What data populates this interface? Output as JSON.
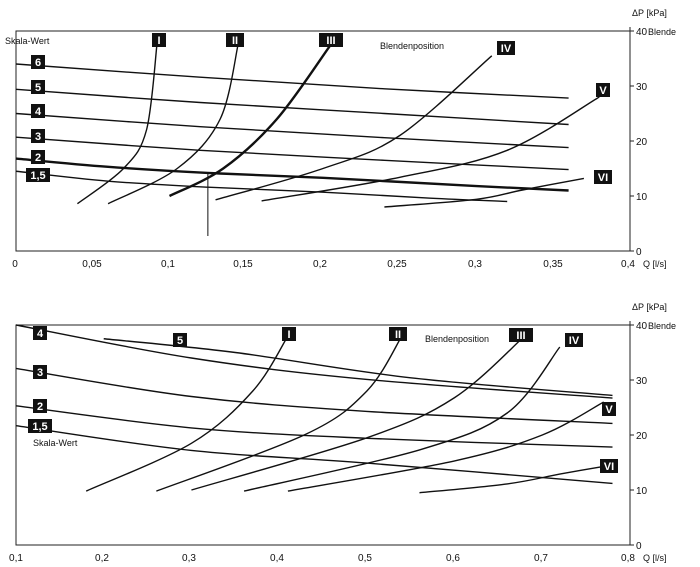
{
  "chart_data": [
    {
      "type": "line",
      "title": "",
      "xlabel": "Q [l/s]",
      "ylabel": "ΔP [kPa]",
      "ylabel_extra": "Blende",
      "scale_label": "Skala-Wert",
      "position_label": "Blendenposition",
      "xlim": [
        0,
        0.4
      ],
      "ylim": [
        0,
        40
      ],
      "x_ticks": [
        "0",
        "0,05",
        "0,1",
        "0,15",
        "0,2",
        "0,25",
        "0,3",
        "0,35",
        "0,4"
      ],
      "y_ticks": [
        "0",
        "10",
        "20",
        "30",
        "40"
      ],
      "grid": false,
      "scale_series": [
        {
          "name": "6",
          "x": [
            0.0,
            0.12,
            0.24,
            0.36
          ],
          "y": [
            34,
            31.6,
            29.5,
            27.8
          ]
        },
        {
          "name": "5",
          "x": [
            0.0,
            0.12,
            0.24,
            0.36
          ],
          "y": [
            29.4,
            27,
            25,
            23
          ]
        },
        {
          "name": "4",
          "x": [
            0.0,
            0.12,
            0.24,
            0.36
          ],
          "y": [
            25,
            22.6,
            20.6,
            18.8
          ]
        },
        {
          "name": "3",
          "x": [
            0.0,
            0.12,
            0.24,
            0.36
          ],
          "y": [
            20.7,
            18.3,
            16.5,
            14.8
          ]
        },
        {
          "name": "2",
          "x": [
            0.0,
            0.06,
            0.125,
            0.2,
            0.3,
            0.36
          ],
          "y": [
            16.8,
            15.3,
            14.2,
            13.3,
            11.8,
            11
          ]
        },
        {
          "name": "1,5",
          "x": [
            0.0,
            0.06,
            0.125,
            0.2,
            0.27,
            0.32
          ],
          "y": [
            14.5,
            12.7,
            11.6,
            10.7,
            9.6,
            9
          ]
        }
      ],
      "position_series": [
        {
          "name": "I",
          "x": [
            0.04,
            0.07,
            0.085,
            0.092
          ],
          "y": [
            8.6,
            15,
            22,
            38
          ]
        },
        {
          "name": "II",
          "x": [
            0.06,
            0.105,
            0.133,
            0.145
          ],
          "y": [
            8.6,
            15,
            24,
            38
          ]
        },
        {
          "name": "III",
          "x": [
            0.1,
            0.135,
            0.17,
            0.205
          ],
          "y": [
            10,
            15,
            24,
            37.5
          ]
        },
        {
          "name": "IV",
          "x": [
            0.13,
            0.2,
            0.25,
            0.31
          ],
          "y": [
            9.3,
            15,
            21,
            35.5
          ]
        },
        {
          "name": "V",
          "x": [
            0.16,
            0.25,
            0.32,
            0.38
          ],
          "y": [
            9.1,
            13.4,
            18.3,
            28
          ]
        },
        {
          "name": "VI",
          "x": [
            0.24,
            0.3,
            0.33,
            0.37
          ],
          "y": [
            8,
            9.4,
            11.1,
            13.2
          ]
        }
      ],
      "reading_example": {
        "x": 0.125,
        "y": 14.2
      }
    },
    {
      "type": "line",
      "title": "",
      "xlabel": "Q [l/s]",
      "ylabel": "ΔP [kPa]",
      "ylabel_extra": "Blende",
      "scale_label": "Skala-Wert",
      "position_label": "Blendenposition",
      "xlim": [
        0.1,
        0.8
      ],
      "ylim": [
        0,
        40
      ],
      "x_ticks": [
        "0,1",
        "0,2",
        "0,3",
        "0,4",
        "0,5",
        "0,6",
        "0,7",
        "0,8"
      ],
      "y_ticks": [
        "0",
        "10",
        "20",
        "30",
        "40"
      ],
      "grid": false,
      "scale_series": [
        {
          "name": "4",
          "x": [
            0.1,
            0.3,
            0.5,
            0.78
          ],
          "y": [
            40,
            34,
            30.1,
            26.7
          ]
        },
        {
          "name": "5",
          "x": [
            0.2,
            0.35,
            0.55,
            0.78
          ],
          "y": [
            37.5,
            35,
            30.4,
            27.2
          ]
        },
        {
          "name": "3",
          "x": [
            0.1,
            0.3,
            0.5,
            0.78
          ],
          "y": [
            32.1,
            27,
            24.3,
            22.1
          ]
        },
        {
          "name": "2",
          "x": [
            0.1,
            0.3,
            0.5,
            0.78
          ],
          "y": [
            25.3,
            21.3,
            19.4,
            17.8
          ]
        },
        {
          "name": "1,5",
          "x": [
            0.1,
            0.3,
            0.5,
            0.78
          ],
          "y": [
            21.7,
            17.2,
            14.9,
            11.2
          ]
        }
      ],
      "position_series": [
        {
          "name": "I",
          "x": [
            0.18,
            0.3,
            0.37,
            0.41
          ],
          "y": [
            9.8,
            18.5,
            28,
            38
          ]
        },
        {
          "name": "II",
          "x": [
            0.26,
            0.43,
            0.5,
            0.54
          ],
          "y": [
            9.8,
            20.1,
            28,
            38
          ]
        },
        {
          "name": "III",
          "x": [
            0.3,
            0.5,
            0.6,
            0.68
          ],
          "y": [
            10,
            19.5,
            26.8,
            38
          ]
        },
        {
          "name": "IV",
          "x": [
            0.36,
            0.56,
            0.66,
            0.72
          ],
          "y": [
            9.8,
            17.3,
            24,
            36
          ]
        },
        {
          "name": "V",
          "x": [
            0.41,
            0.6,
            0.7,
            0.77
          ],
          "y": [
            9.8,
            15.3,
            20,
            26
          ]
        },
        {
          "name": "VI",
          "x": [
            0.56,
            0.66,
            0.72,
            0.77
          ],
          "y": [
            9.5,
            11.1,
            12.9,
            14.3
          ]
        }
      ]
    }
  ]
}
